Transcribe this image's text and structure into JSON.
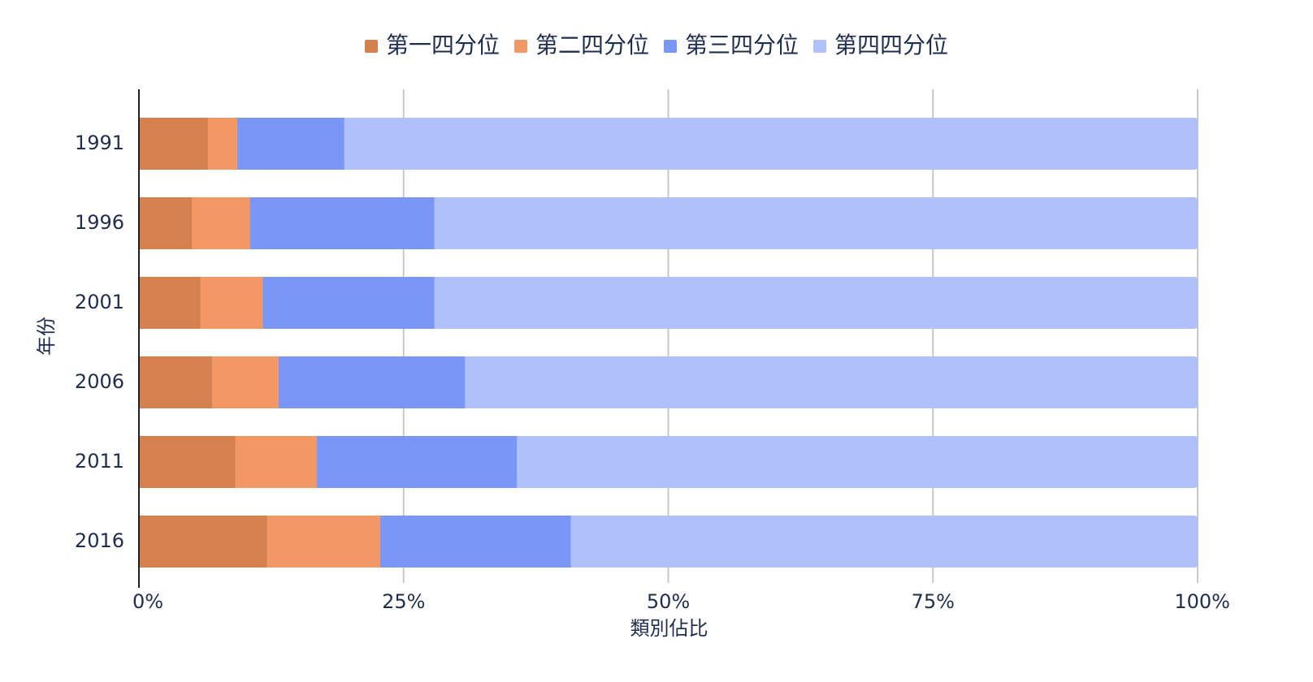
{
  "chart_data": {
    "type": "bar",
    "orientation": "horizontal",
    "stacked": true,
    "normalized": true,
    "categories": [
      "1991",
      "1996",
      "2001",
      "2006",
      "2011",
      "2016"
    ],
    "series": [
      {
        "name": "第一四分位",
        "color": "#d4814f",
        "values": [
          6.5,
          5.0,
          5.8,
          6.9,
          9.1,
          12.1
        ]
      },
      {
        "name": "第二四分位",
        "color": "#f19865",
        "values": [
          2.8,
          5.5,
          5.9,
          6.3,
          7.7,
          10.7
        ]
      },
      {
        "name": "第三四分位",
        "color": "#7a97f5",
        "values": [
          10.1,
          17.4,
          16.2,
          17.6,
          18.9,
          18.0
        ]
      },
      {
        "name": "第四四分位",
        "color": "#b0c0fa",
        "values": [
          80.6,
          72.1,
          72.1,
          69.2,
          64.3,
          59.2
        ]
      }
    ],
    "xlabel": "類別佔比",
    "ylabel": "年份",
    "xlim": [
      0,
      100
    ],
    "xticks": [
      0,
      25,
      50,
      75,
      100
    ],
    "xtick_labels": [
      "0%",
      "25%",
      "50%",
      "75%",
      "100%"
    ],
    "grid": true,
    "legend_position": "top-center"
  }
}
